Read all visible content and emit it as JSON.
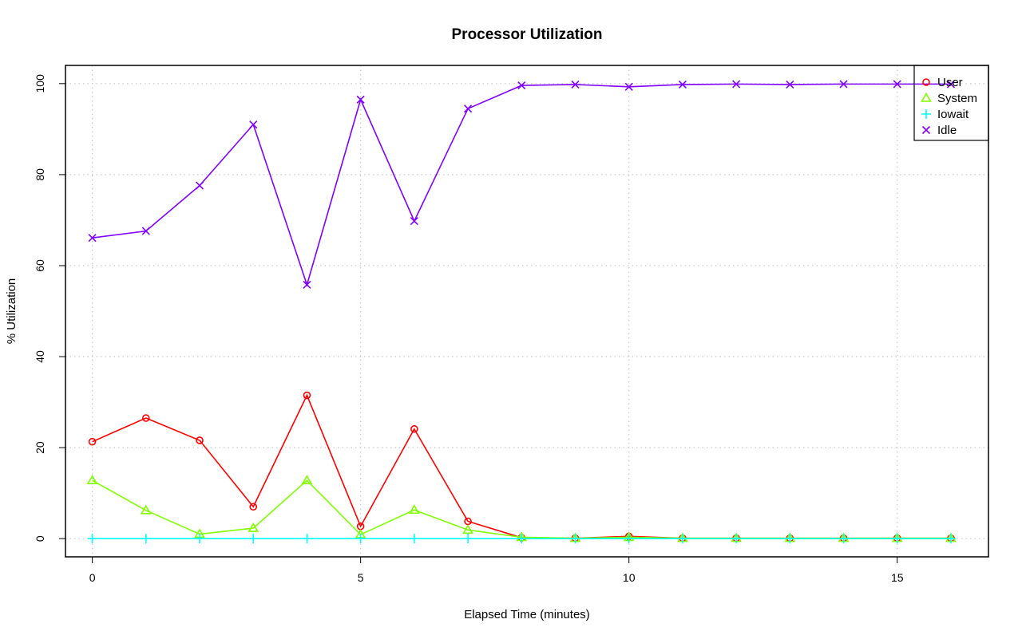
{
  "chart_data": {
    "type": "line",
    "title": "Processor Utilization",
    "xlabel": "Elapsed Time (minutes)",
    "ylabel": "% Utilization",
    "xlim": [
      -0.5,
      16.7
    ],
    "ylim": [
      -4,
      104
    ],
    "xticks": [
      0,
      5,
      10,
      15
    ],
    "yticks": [
      0,
      20,
      40,
      60,
      80,
      100
    ],
    "grid": true,
    "legend_position": "top-right",
    "x": [
      0,
      1,
      2,
      3,
      4,
      5,
      6,
      7,
      8,
      9,
      10,
      11,
      12,
      13,
      14,
      15,
      16
    ],
    "series": [
      {
        "name": "User",
        "color": "#ff0000",
        "marker": "circle",
        "values": [
          21.3,
          26.5,
          21.6,
          7.0,
          31.5,
          2.7,
          24.1,
          3.8,
          0.2,
          0.1,
          0.5,
          0.1,
          0.1,
          0.1,
          0.1,
          0.1,
          0.1
        ]
      },
      {
        "name": "System",
        "color": "#80ff00",
        "marker": "triangle",
        "values": [
          12.8,
          6.2,
          1.0,
          2.3,
          12.8,
          0.9,
          6.3,
          1.9,
          0.3,
          0.1,
          0.3,
          0.1,
          0.1,
          0.1,
          0.1,
          0.1,
          0.1
        ]
      },
      {
        "name": "Iowait",
        "color": "#00ffff",
        "marker": "plus",
        "values": [
          0,
          0,
          0,
          0,
          0,
          0,
          0,
          0,
          0,
          0,
          0,
          0,
          0,
          0,
          0,
          0,
          0
        ]
      },
      {
        "name": "Idle",
        "color": "#8000ff",
        "marker": "cross",
        "values": [
          66.1,
          67.6,
          77.6,
          91.0,
          55.8,
          96.5,
          69.8,
          94.5,
          99.6,
          99.8,
          99.3,
          99.8,
          99.9,
          99.8,
          99.9,
          99.9,
          99.9
        ]
      }
    ]
  }
}
